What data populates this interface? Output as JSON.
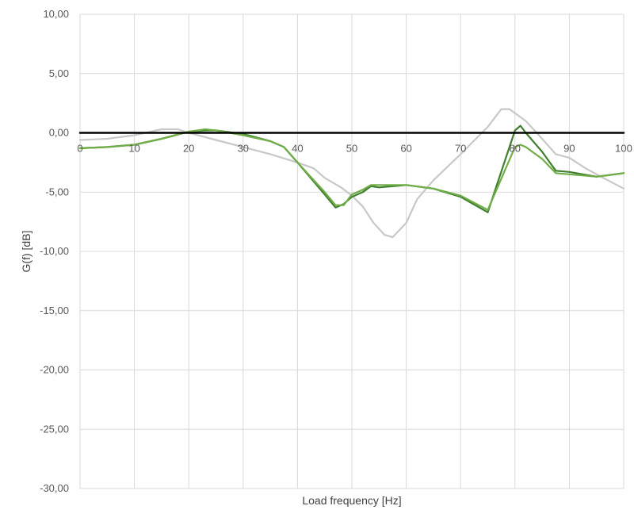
{
  "chart_data": {
    "type": "line",
    "xlabel": "Load frequency [Hz]",
    "ylabel": "G(f) [dB]",
    "xlim": [
      0,
      100
    ],
    "ylim": [
      -30,
      10
    ],
    "x_ticks": [
      0,
      10,
      20,
      30,
      40,
      50,
      60,
      70,
      80,
      90,
      100
    ],
    "y_ticks": [
      10,
      5,
      0,
      -5,
      -10,
      -15,
      -20,
      -25,
      -30
    ],
    "x_tick_labels": [
      "0",
      "10",
      "20",
      "30",
      "40",
      "50",
      "60",
      "70",
      "80",
      "90",
      "100"
    ],
    "y_tick_labels": [
      "10,00",
      "5,00",
      "0,00",
      "-5,00",
      "-10,00",
      "-15,00",
      "-20,00",
      "-25,00",
      "-30,00"
    ],
    "grid": true,
    "legend": "none",
    "series": [
      {
        "color": "#c8c8c8",
        "x": [
          0,
          5,
          10,
          15,
          18,
          20,
          25,
          30,
          35,
          40,
          43,
          45,
          48,
          50,
          52,
          54,
          56,
          57.5,
          60,
          62,
          65,
          70,
          75,
          77.5,
          79,
          82,
          85,
          87.5,
          90,
          93,
          95,
          100
        ],
        "y": [
          -0.6,
          -0.5,
          -0.2,
          0.3,
          0.3,
          0.0,
          -0.6,
          -1.2,
          -1.8,
          -2.5,
          -3.0,
          -3.8,
          -4.6,
          -5.3,
          -6.2,
          -7.6,
          -8.6,
          -8.8,
          -7.6,
          -5.6,
          -4.0,
          -1.8,
          0.5,
          2.0,
          2.0,
          1.0,
          -0.5,
          -1.8,
          -2.1,
          -3.0,
          -3.5,
          -4.7
        ]
      },
      {
        "color": "#3f7f2f",
        "x": [
          0,
          5,
          10,
          15,
          20,
          23,
          25,
          30,
          35,
          37.5,
          40,
          45,
          47,
          48.5,
          50,
          52,
          53.5,
          55,
          60,
          65,
          70,
          75,
          80,
          81,
          82,
          85,
          87.5,
          90,
          95,
          100
        ],
        "y": [
          -1.3,
          -1.2,
          -1.0,
          -0.5,
          0.1,
          0.2,
          0.2,
          -0.1,
          -0.7,
          -1.2,
          -2.5,
          -5.2,
          -6.3,
          -6.0,
          -5.4,
          -5.0,
          -4.5,
          -4.6,
          -4.4,
          -4.7,
          -5.4,
          -6.7,
          0.2,
          0.6,
          0.0,
          -1.6,
          -3.2,
          -3.3,
          -3.7,
          -3.4
        ]
      },
      {
        "color": "#70ad47",
        "x": [
          0,
          5,
          10,
          15,
          20,
          23,
          25,
          30,
          35,
          37.5,
          40,
          45,
          47,
          48.5,
          50,
          52,
          53.5,
          55,
          60,
          65,
          70,
          75,
          80,
          81,
          82,
          85,
          87.5,
          90,
          95,
          100
        ],
        "y": [
          -1.3,
          -1.2,
          -1.0,
          -0.5,
          0.1,
          0.3,
          0.2,
          -0.2,
          -0.7,
          -1.2,
          -2.5,
          -5.0,
          -6.1,
          -6.1,
          -5.2,
          -4.8,
          -4.4,
          -4.4,
          -4.4,
          -4.7,
          -5.3,
          -6.5,
          -1.2,
          -1.0,
          -1.2,
          -2.2,
          -3.4,
          -3.5,
          -3.7,
          -3.4
        ]
      },
      {
        "color": "#000000",
        "x": [
          0,
          20,
          40,
          60,
          80,
          100
        ],
        "y": [
          0,
          0,
          0,
          0,
          0,
          0
        ]
      }
    ]
  }
}
